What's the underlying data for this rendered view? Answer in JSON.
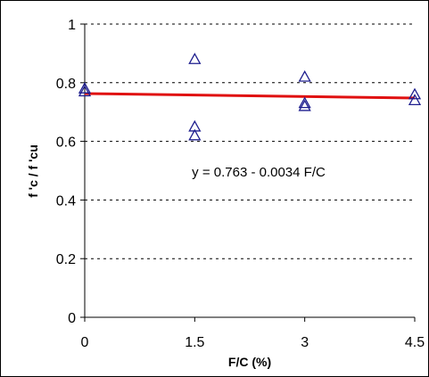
{
  "chart_data": {
    "type": "scatter",
    "xlabel": "F/C (%)",
    "ylabel": "f 'c / f 'cu",
    "xlim": [
      0,
      4.5
    ],
    "ylim": [
      0,
      1
    ],
    "x_ticks": [
      "0",
      "1.5",
      "3",
      "4.5"
    ],
    "y_ticks": [
      "0",
      "0.2",
      "0.4",
      "0.6",
      "0.8",
      "1"
    ],
    "grid": "horizontal dashed",
    "series": [
      {
        "marker": "open-triangle",
        "color": "#1f1f8f",
        "points": [
          {
            "x": 0,
            "y": 0.78
          },
          {
            "x": 0,
            "y": 0.77
          },
          {
            "x": 1.5,
            "y": 0.88
          },
          {
            "x": 1.5,
            "y": 0.65
          },
          {
            "x": 1.5,
            "y": 0.62
          },
          {
            "x": 3,
            "y": 0.82
          },
          {
            "x": 3,
            "y": 0.73
          },
          {
            "x": 3,
            "y": 0.72
          },
          {
            "x": 4.5,
            "y": 0.76
          },
          {
            "x": 4.5,
            "y": 0.74
          }
        ]
      }
    ],
    "trendline": {
      "color": "#e01010",
      "intercept": 0.763,
      "slope": -0.0034,
      "label": "y = 0.763 - 0.0034 F/C"
    }
  }
}
